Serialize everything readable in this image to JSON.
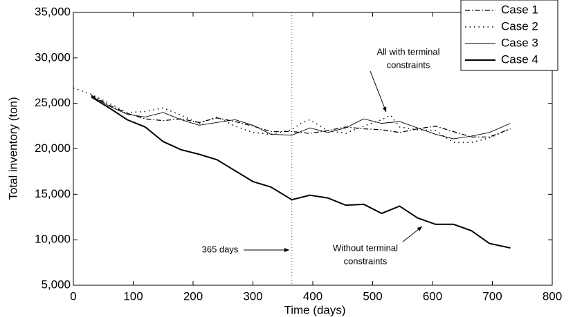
{
  "chart_data": {
    "type": "line",
    "xlabel": "Time (days)",
    "ylabel": "Total inventory (ton)",
    "xlim": [
      0,
      800
    ],
    "xticks": [
      0,
      100,
      200,
      300,
      400,
      500,
      600,
      700,
      800
    ],
    "ylim": [
      5000,
      35000
    ],
    "yticks": [
      {
        "value": 5000,
        "label": "5,000"
      },
      {
        "value": 10000,
        "label": "10,000"
      },
      {
        "value": 15000,
        "label": "15,000"
      },
      {
        "value": 20000,
        "label": "20,000"
      },
      {
        "value": 25000,
        "label": "25,000"
      },
      {
        "value": 30000,
        "label": "30,000"
      },
      {
        "value": 35000,
        "label": "35,000"
      }
    ],
    "grid": false,
    "legend": "upper right",
    "vline": 365,
    "annotations": [
      {
        "lines": [
          "365 days"
        ]
      },
      {
        "lines": [
          "All with terminal",
          "constraints"
        ]
      },
      {
        "lines": [
          "Without terminal",
          "constraints"
        ]
      }
    ],
    "series": [
      {
        "name": "Case 1",
        "color": "#000000",
        "style": "dashdot",
        "width": 1.3,
        "x": [
          30,
          60,
          90,
          120,
          150,
          180,
          210,
          240,
          270,
          300,
          330,
          365,
          395,
          425,
          455,
          485,
          515,
          545,
          575,
          605,
          635,
          665,
          695,
          730
        ],
        "values": [
          25900,
          24800,
          23900,
          23300,
          23100,
          23300,
          22900,
          23400,
          23000,
          22500,
          21900,
          21900,
          21700,
          22000,
          22400,
          22200,
          22100,
          21800,
          22200,
          22500,
          21900,
          21300,
          21300,
          22200
        ]
      },
      {
        "name": "Case 2",
        "color": "#000000",
        "style": "dotted",
        "width": 1.5,
        "x": [
          0,
          30,
          60,
          90,
          120,
          150,
          180,
          210,
          240,
          270,
          300,
          330,
          365,
          380,
          395,
          425,
          455,
          485,
          515,
          530,
          545,
          575,
          605,
          635,
          665,
          695,
          730
        ],
        "values": [
          26700,
          26000,
          25000,
          24000,
          24100,
          24500,
          23700,
          22800,
          23500,
          22500,
          21800,
          21600,
          22100,
          22800,
          23200,
          22000,
          21700,
          22500,
          23200,
          23700,
          22400,
          22100,
          22000,
          20700,
          20700,
          21200,
          22200
        ]
      },
      {
        "name": "Case 3",
        "color": "#000000",
        "style": "solid",
        "width": 0.9,
        "x": [
          30,
          60,
          90,
          120,
          150,
          180,
          210,
          240,
          270,
          300,
          330,
          365,
          395,
          425,
          455,
          485,
          515,
          545,
          575,
          605,
          635,
          665,
          695,
          730
        ],
        "values": [
          25800,
          24700,
          23800,
          23500,
          24000,
          23200,
          22600,
          22900,
          23200,
          22600,
          21600,
          21500,
          22300,
          21800,
          22300,
          23300,
          22800,
          23000,
          22300,
          21600,
          21100,
          21400,
          21800,
          22800
        ]
      },
      {
        "name": "Case 4",
        "color": "#000000",
        "style": "solid",
        "width": 2,
        "x": [
          30,
          60,
          90,
          120,
          150,
          180,
          210,
          240,
          270,
          300,
          330,
          365,
          395,
          425,
          455,
          485,
          515,
          545,
          575,
          605,
          635,
          665,
          695,
          730
        ],
        "values": [
          25700,
          24500,
          23200,
          22400,
          20800,
          19900,
          19400,
          18800,
          17600,
          16400,
          15800,
          14400,
          14900,
          14600,
          13800,
          13900,
          12900,
          13700,
          12400,
          11700,
          11700,
          11000,
          9600,
          9100
        ]
      }
    ]
  }
}
